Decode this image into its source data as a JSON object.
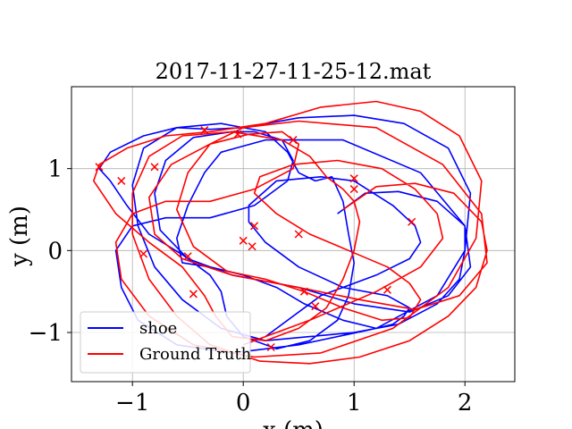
{
  "chart_data": {
    "type": "line",
    "title": "2017-11-27-11-25-12.mat",
    "xlabel": "x (m)",
    "ylabel": "y (m)",
    "xlim": [
      -1.55,
      2.45
    ],
    "ylim": [
      -1.6,
      2.0
    ],
    "xticks": [
      -1,
      0,
      1,
      2
    ],
    "xtick_labels": [
      "−1",
      "0",
      "1",
      "2"
    ],
    "yticks": [
      -1,
      0,
      1
    ],
    "ytick_labels": [
      "−1",
      "0",
      "1"
    ],
    "grid": true,
    "legend_position": "lower-left",
    "series": [
      {
        "name": "shoe",
        "color": "#0000ff",
        "x": [
          0.85,
          1.1,
          1.4,
          1.75,
          2.0,
          2.0,
          1.95,
          1.75,
          1.4,
          1.0,
          0.6,
          0.2,
          -0.2,
          -0.55,
          -0.8,
          -0.95,
          -1.0,
          -0.9,
          -0.6,
          -0.2,
          0.2,
          0.4,
          0.5,
          0.65,
          0.8,
          0.9,
          0.95,
          1.0,
          0.95,
          0.85,
          0.6,
          0.3,
          0.0,
          -0.15,
          -0.2,
          -0.3,
          -0.55,
          -0.85,
          -1.05,
          -1.2,
          -1.3,
          -1.2,
          -0.9,
          -0.6,
          -0.3,
          0.0,
          0.5,
          1.0,
          1.45,
          1.85,
          2.05,
          2.0,
          1.75,
          1.2,
          0.5,
          -0.1,
          -0.6,
          -0.95,
          -1.1,
          -1.15,
          -1.0,
          -0.7,
          -0.3,
          0.1,
          0.4,
          0.45,
          0.35,
          0.1,
          -0.1,
          -0.45,
          -0.7,
          -0.8,
          -0.75,
          -0.5,
          -0.1,
          0.5,
          1.0,
          1.5,
          1.85,
          2.05,
          2.0,
          1.6,
          0.9,
          0.2,
          -0.2,
          -0.35,
          -0.5,
          -0.6,
          -0.55,
          -0.3,
          0.0,
          0.3,
          0.55,
          0.9,
          1.2,
          1.35,
          1.45,
          1.5,
          1.3,
          0.9,
          0.5,
          0.2,
          0.05,
          0.05,
          0.3,
          0.7,
          1.0,
          1.35,
          1.55,
          1.6,
          1.5,
          1.2,
          0.7,
          0.2
        ],
        "y": [
          0.45,
          0.7,
          0.72,
          0.6,
          0.3,
          0.0,
          -0.35,
          -0.65,
          -0.9,
          -1.0,
          -1.05,
          -1.1,
          -0.95,
          -0.6,
          -0.2,
          0.3,
          0.8,
          1.25,
          1.5,
          1.55,
          1.45,
          1.2,
          0.95,
          0.85,
          0.9,
          0.6,
          0.2,
          -0.15,
          -0.55,
          -0.85,
          -1.1,
          -1.2,
          -1.05,
          -0.8,
          -0.5,
          -0.3,
          -0.05,
          0.2,
          0.55,
          0.85,
          1.0,
          1.2,
          1.4,
          1.5,
          1.48,
          1.5,
          1.62,
          1.65,
          1.55,
          1.25,
          0.7,
          0.0,
          -0.55,
          -0.95,
          -1.15,
          -1.25,
          -1.15,
          -0.85,
          -0.45,
          0.0,
          0.3,
          0.4,
          0.4,
          0.55,
          0.85,
          1.1,
          1.35,
          1.45,
          1.45,
          1.38,
          1.1,
          0.7,
          0.25,
          -0.1,
          -0.3,
          -0.45,
          -0.65,
          -0.75,
          -0.55,
          -0.2,
          0.3,
          0.95,
          1.35,
          1.35,
          1.2,
          0.95,
          0.55,
          0.15,
          -0.15,
          -0.2,
          -0.3,
          -0.45,
          -0.65,
          -0.85,
          -0.95,
          -0.9,
          -0.8,
          -0.7,
          -0.55,
          -0.45,
          -0.2,
          0.1,
          0.35,
          0.55,
          0.85,
          0.9,
          0.85,
          0.55,
          0.3,
          0.1,
          -0.1,
          -0.3,
          -0.55,
          -1.05
        ]
      },
      {
        "name": "Ground Truth",
        "color": "#ff0000",
        "x": [
          0.9,
          1.2,
          1.55,
          1.9,
          2.15,
          2.2,
          2.1,
          1.85,
          1.5,
          1.05,
          0.6,
          0.15,
          -0.3,
          -0.6,
          -0.85,
          -1.0,
          -1.0,
          -0.85,
          -0.55,
          -0.1,
          0.35,
          0.6,
          0.75,
          0.9,
          1.0,
          1.05,
          1.0,
          0.9,
          0.75,
          0.5,
          0.2,
          -0.1,
          -0.25,
          -0.35,
          -0.55,
          -0.85,
          -1.15,
          -1.35,
          -1.3,
          -1.05,
          -0.7,
          -0.3,
          0.2,
          0.7,
          1.2,
          1.6,
          1.95,
          2.15,
          2.1,
          1.85,
          1.35,
          0.7,
          0.1,
          -0.45,
          -0.85,
          -1.1,
          -1.15,
          -1.0,
          -0.7,
          -0.3,
          0.1,
          0.45,
          0.5,
          0.35,
          0.05,
          -0.3,
          -0.65,
          -0.85,
          -0.8,
          -0.55,
          -0.1,
          0.5,
          1.05,
          1.55,
          1.95,
          2.2,
          2.15,
          1.8,
          1.2,
          0.5,
          0.0,
          -0.3,
          -0.5,
          -0.6,
          -0.45,
          -0.15,
          0.2,
          0.55,
          0.9,
          1.25,
          1.5,
          1.6,
          1.5,
          1.3,
          0.95,
          0.6,
          0.3,
          0.1,
          0.15,
          0.45,
          0.85,
          1.25,
          1.55,
          1.75,
          1.8,
          1.6,
          1.2,
          0.6,
          0.0
        ],
        "y": [
          0.5,
          0.78,
          0.82,
          0.7,
          0.35,
          0.0,
          -0.45,
          -0.8,
          -1.1,
          -1.3,
          -1.38,
          -1.35,
          -1.15,
          -0.8,
          -0.35,
          0.2,
          0.7,
          1.15,
          1.4,
          1.45,
          1.35,
          1.15,
          0.9,
          0.75,
          0.6,
          0.35,
          0.0,
          -0.35,
          -0.7,
          -0.95,
          -1.1,
          -1.05,
          -0.8,
          -0.55,
          -0.2,
          0.1,
          0.45,
          0.85,
          1.05,
          1.25,
          1.4,
          1.45,
          1.55,
          1.75,
          1.82,
          1.7,
          1.4,
          0.85,
          0.15,
          -0.45,
          -0.95,
          -1.25,
          -1.3,
          -1.15,
          -0.8,
          -0.35,
          0.1,
          0.45,
          0.6,
          0.6,
          0.75,
          1.0,
          1.3,
          1.45,
          1.42,
          1.3,
          1.05,
          0.65,
          0.2,
          -0.1,
          -0.3,
          -0.45,
          -0.6,
          -0.72,
          -0.55,
          -0.15,
          0.45,
          1.05,
          1.5,
          1.58,
          1.5,
          1.3,
          0.95,
          0.5,
          0.05,
          -0.25,
          -0.35,
          -0.5,
          -0.7,
          -0.85,
          -0.82,
          -0.6,
          -0.4,
          -0.2,
          0.0,
          0.2,
          0.45,
          0.7,
          0.9,
          1.05,
          1.1,
          1.0,
          0.75,
          0.45,
          0.15,
          -0.2,
          -0.5,
          -0.85,
          -1.15
        ]
      }
    ],
    "markers": {
      "shape": "x",
      "x": [
        -1.3,
        -1.1,
        -0.8,
        -0.35,
        -0.05,
        0.1,
        0.45,
        0.5,
        1.0,
        1.52,
        0.0,
        -0.45,
        -0.9,
        -0.5,
        0.08,
        0.65,
        1.3,
        0.55,
        0.25,
        1.0
      ],
      "y": [
        1.02,
        0.85,
        1.02,
        1.47,
        1.42,
        0.3,
        1.35,
        0.2,
        0.88,
        0.35,
        0.12,
        -0.53,
        -0.04,
        -0.07,
        0.05,
        -0.68,
        -0.48,
        -0.5,
        -1.18,
        0.75
      ]
    }
  }
}
